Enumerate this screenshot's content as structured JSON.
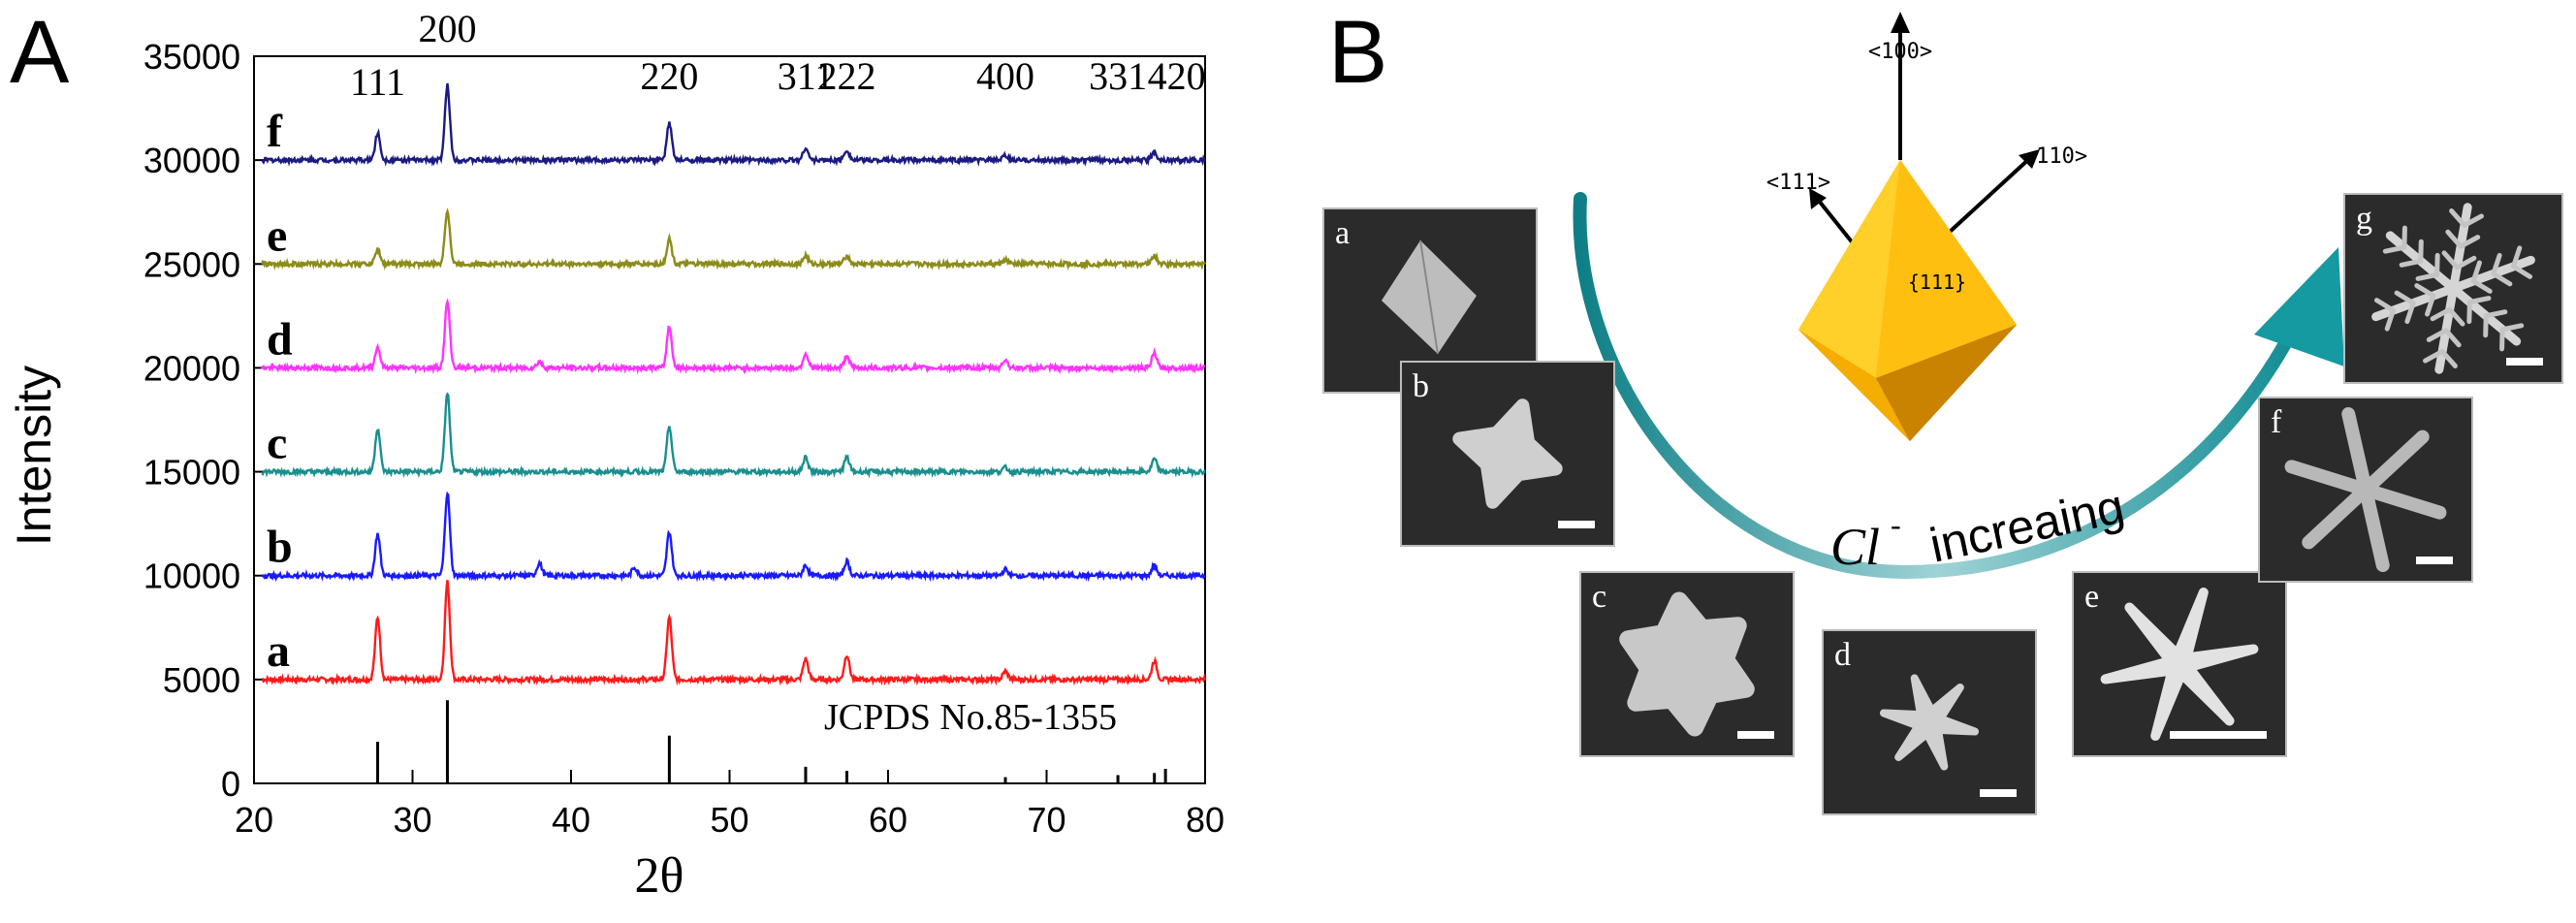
{
  "panel_a": {
    "letter": "A",
    "reference_label": "JCPDS No.85-1355"
  },
  "panel_b": {
    "letter": "B",
    "direction_100": "<100>",
    "direction_111": "<111>",
    "direction_110": "<110>",
    "facet_label": "{111}",
    "ion_label": "Cl",
    "ion_charge": "-",
    "trend_label": "increaing",
    "insets": [
      {
        "label": "a",
        "shape": "octahedron"
      },
      {
        "label": "b",
        "shape": "four-lobed"
      },
      {
        "label": "c",
        "shape": "rounded-six-pod"
      },
      {
        "label": "d",
        "shape": "six-petal-small"
      },
      {
        "label": "e",
        "shape": "six-arm-smooth"
      },
      {
        "label": "f",
        "shape": "six-arm-dendritic"
      },
      {
        "label": "g",
        "shape": "snowflake-dendrite"
      }
    ]
  },
  "colors": {
    "a": "#ff1a1a",
    "b": "#1a1aff",
    "c": "#1a8f8f",
    "d": "#ff33ff",
    "e": "#8c8c1a",
    "f": "#1a1a80",
    "reference": "#000000",
    "arrow": "#1a9a9a",
    "crystal": "#f5b800"
  },
  "chart_data": {
    "type": "line",
    "xlabel": "2θ",
    "ylabel": "Intensity",
    "xlim": [
      20,
      80
    ],
    "ylim": [
      0,
      35000
    ],
    "x_ticks": [
      20,
      30,
      40,
      50,
      60,
      70,
      80
    ],
    "y_ticks": [
      0,
      5000,
      10000,
      15000,
      20000,
      25000,
      30000,
      35000
    ],
    "reference": {
      "name": "JCPDS No.85-1355",
      "sticks": [
        {
          "x": 27.8,
          "y": 2000
        },
        {
          "x": 32.2,
          "y": 4000
        },
        {
          "x": 46.2,
          "y": 2300
        },
        {
          "x": 54.8,
          "y": 800
        },
        {
          "x": 57.4,
          "y": 600
        },
        {
          "x": 67.4,
          "y": 300
        },
        {
          "x": 74.5,
          "y": 400
        },
        {
          "x": 76.8,
          "y": 500
        },
        {
          "x": 77.5,
          "y": 700
        }
      ]
    },
    "series": [
      {
        "name": "a",
        "offset": 5000,
        "peaks": [
          [
            27.8,
            3000
          ],
          [
            32.2,
            4700
          ],
          [
            46.2,
            3000
          ],
          [
            54.8,
            1000
          ],
          [
            57.4,
            1200
          ],
          [
            67.4,
            400
          ],
          [
            76.8,
            900
          ]
        ]
      },
      {
        "name": "b",
        "offset": 10000,
        "peaks": [
          [
            27.8,
            2000
          ],
          [
            32.2,
            4000
          ],
          [
            38.0,
            600
          ],
          [
            44.0,
            400
          ],
          [
            46.2,
            2100
          ],
          [
            54.8,
            500
          ],
          [
            57.4,
            700
          ],
          [
            67.4,
            300
          ],
          [
            76.8,
            500
          ]
        ]
      },
      {
        "name": "c",
        "offset": 15000,
        "peaks": [
          [
            27.8,
            2100
          ],
          [
            32.2,
            3800
          ],
          [
            46.2,
            2200
          ],
          [
            54.8,
            700
          ],
          [
            57.4,
            700
          ],
          [
            67.4,
            200
          ],
          [
            76.8,
            600
          ]
        ]
      },
      {
        "name": "d",
        "offset": 20000,
        "peaks": [
          [
            27.8,
            1000
          ],
          [
            32.2,
            3200
          ],
          [
            38.0,
            300
          ],
          [
            46.2,
            2000
          ],
          [
            54.8,
            700
          ],
          [
            57.4,
            600
          ],
          [
            67.4,
            400
          ],
          [
            76.8,
            700
          ]
        ]
      },
      {
        "name": "e",
        "offset": 25000,
        "peaks": [
          [
            27.8,
            700
          ],
          [
            32.2,
            2600
          ],
          [
            46.2,
            1200
          ],
          [
            54.8,
            400
          ],
          [
            57.4,
            400
          ],
          [
            67.4,
            200
          ],
          [
            76.8,
            400
          ]
        ]
      },
      {
        "name": "f",
        "offset": 30000,
        "peaks": [
          [
            27.8,
            1300
          ],
          [
            32.2,
            3600
          ],
          [
            46.2,
            1800
          ],
          [
            54.8,
            600
          ],
          [
            57.4,
            500
          ],
          [
            67.4,
            200
          ],
          [
            76.8,
            400
          ]
        ]
      }
    ],
    "peak_labels": [
      {
        "text": "111",
        "x": 27.8
      },
      {
        "text": "200",
        "x": 32.2
      },
      {
        "text": "220",
        "x": 46.2
      },
      {
        "text": "311",
        "x": 54.8
      },
      {
        "text": "222",
        "x": 57.4
      },
      {
        "text": "400",
        "x": 67.4
      },
      {
        "text": "331",
        "x": 74.5
      },
      {
        "text": "420",
        "x": 78.2
      }
    ]
  }
}
